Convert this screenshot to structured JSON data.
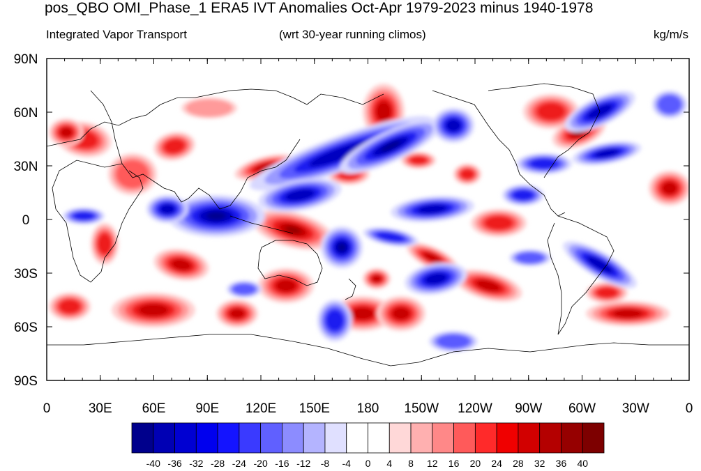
{
  "header": {
    "title": "pos_QBO OMI_Phase_1 ERA5 IVT Anomalies Oct-Apr 1979-2023 minus 1940-1978",
    "left_label": "Integrated Vapor Transport",
    "center_label": "(wrt 30-year running climos)",
    "right_label": "kg/m/s"
  },
  "axes": {
    "lat_labels": [
      "90N",
      "60N",
      "30N",
      "0",
      "30S",
      "60S",
      "90S"
    ],
    "lon_labels": [
      "0",
      "30E",
      "60E",
      "90E",
      "120E",
      "150E",
      "180",
      "150W",
      "120W",
      "90W",
      "60W",
      "30W",
      "0"
    ]
  },
  "colorbar": {
    "labels": [
      "-40",
      "-36",
      "-32",
      "-28",
      "-24",
      "-20",
      "-16",
      "-12",
      "-8",
      "-4",
      "0",
      "4",
      "8",
      "12",
      "16",
      "20",
      "24",
      "28",
      "32",
      "36",
      "40"
    ],
    "colors": [
      "#00008c",
      "#0000b4",
      "#0000d2",
      "#0000ee",
      "#1414ff",
      "#3a3aff",
      "#6060ff",
      "#8c8cff",
      "#b4b4ff",
      "#e0e0ff",
      "#ffffff",
      "#ffffff",
      "#ffd8d8",
      "#ffb0b0",
      "#ff8888",
      "#ff5a5a",
      "#ff2a2a",
      "#f00000",
      "#d20000",
      "#b40000",
      "#960000",
      "#7d0000"
    ]
  },
  "colors": {
    "positive": "#e8141e",
    "negative": "#0a1ee0",
    "coast": "#000000"
  }
}
